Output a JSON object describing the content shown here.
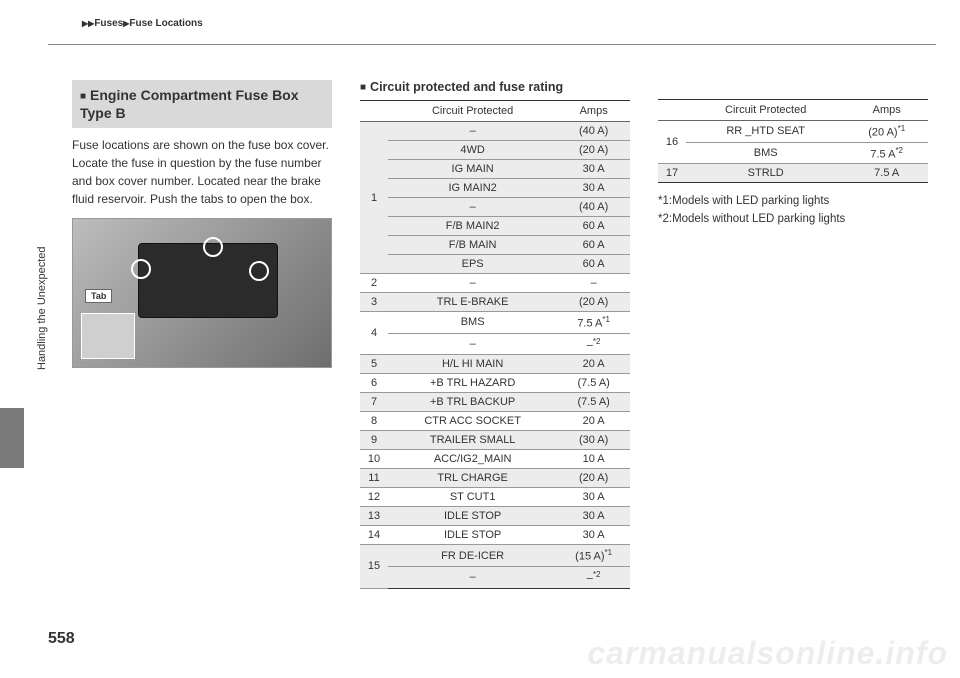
{
  "breadcrumb": {
    "l1": "Fuses",
    "l2": "Fuse Locations"
  },
  "sidebar": "Handling the Unexpected",
  "page_number": "558",
  "watermark": "carmanualsonline.info",
  "col1": {
    "title": "Engine Compartment Fuse Box Type B",
    "body": "Fuse locations are shown on the fuse box cover. Locate the fuse in question by the fuse number and box cover number. Located near the brake fluid reservoir. Push the tabs to open the box.",
    "tab_label": "Tab"
  },
  "col2": {
    "subhead": "Circuit protected and fuse rating",
    "header": {
      "c1": "Circuit Protected",
      "c2": "Amps"
    },
    "rows": [
      {
        "num": "1",
        "span": 8,
        "shade": true,
        "sub": [
          {
            "c": "–",
            "a": "(40 A)"
          },
          {
            "c": "4WD",
            "a": "(20 A)"
          },
          {
            "c": "IG MAIN",
            "a": "30 A"
          },
          {
            "c": "IG MAIN2",
            "a": "30 A"
          },
          {
            "c": "–",
            "a": "(40 A)"
          },
          {
            "c": "F/B MAIN2",
            "a": "60 A"
          },
          {
            "c": "F/B MAIN",
            "a": "60 A"
          },
          {
            "c": "EPS",
            "a": "60 A"
          }
        ]
      },
      {
        "num": "2",
        "c": "–",
        "a": "–"
      },
      {
        "num": "3",
        "shade": true,
        "c": "TRL E-BRAKE",
        "a": "(20 A)"
      },
      {
        "num": "4",
        "span": 2,
        "sub": [
          {
            "c": "BMS",
            "a": "7.5 A",
            "sup": "*1"
          },
          {
            "c": "–",
            "a": "–",
            "sup": "*2"
          }
        ]
      },
      {
        "num": "5",
        "shade": true,
        "c": "H/L HI MAIN",
        "a": "20 A"
      },
      {
        "num": "6",
        "c": "+B TRL HAZARD",
        "a": "(7.5 A)"
      },
      {
        "num": "7",
        "shade": true,
        "c": "+B TRL BACKUP",
        "a": "(7.5 A)"
      },
      {
        "num": "8",
        "c": "CTR ACC SOCKET",
        "a": "20 A"
      },
      {
        "num": "9",
        "shade": true,
        "c": "TRAILER SMALL",
        "a": "(30 A)"
      },
      {
        "num": "10",
        "c": "ACC/IG2_MAIN",
        "a": "10 A"
      },
      {
        "num": "11",
        "shade": true,
        "c": "TRL CHARGE",
        "a": "(20 A)"
      },
      {
        "num": "12",
        "c": "ST CUT1",
        "a": "30 A"
      },
      {
        "num": "13",
        "shade": true,
        "c": "IDLE STOP",
        "a": "30 A"
      },
      {
        "num": "14",
        "c": "IDLE STOP",
        "a": "30 A"
      },
      {
        "num": "15",
        "span": 2,
        "shade": true,
        "last": true,
        "sub": [
          {
            "c": "FR DE-ICER",
            "a": "(15 A)",
            "sup": "*1"
          },
          {
            "c": "–",
            "a": "–",
            "sup": "*2"
          }
        ]
      }
    ]
  },
  "col3": {
    "header": {
      "c1": "Circuit Protected",
      "c2": "Amps"
    },
    "rows": [
      {
        "num": "16",
        "span": 2,
        "sub": [
          {
            "c": "RR _HTD SEAT",
            "a": "(20 A)",
            "sup": "*1"
          },
          {
            "c": "BMS",
            "a": "7.5 A",
            "sup": "*2"
          }
        ]
      },
      {
        "num": "17",
        "shade": true,
        "last": true,
        "c": "STRLD",
        "a": "7.5 A"
      }
    ],
    "footnotes": {
      "f1": "*1:Models with LED parking lights",
      "f2": "*2:Models without LED parking lights"
    }
  }
}
